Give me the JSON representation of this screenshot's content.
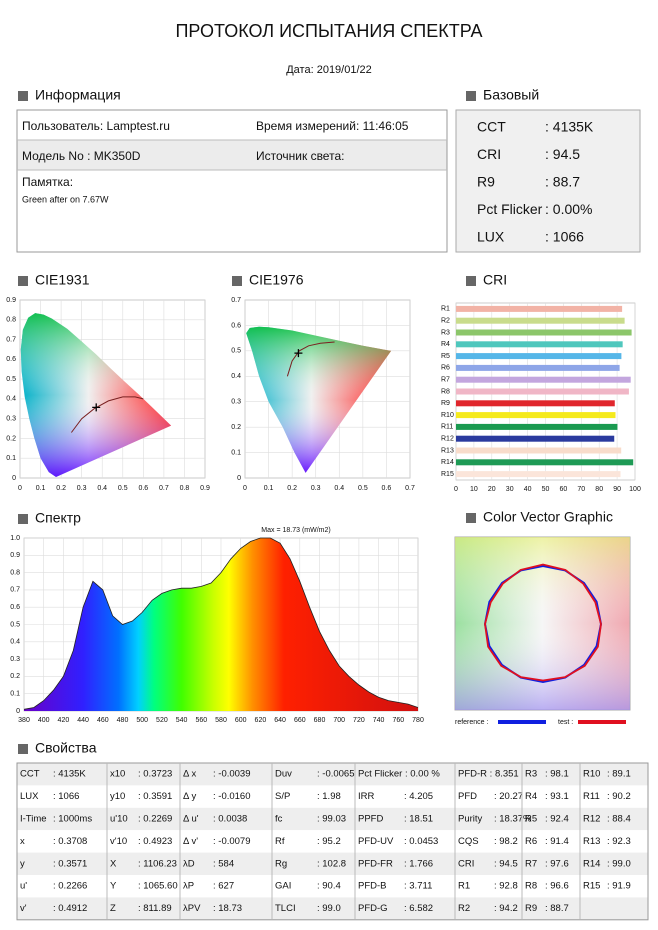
{
  "header": {
    "title": "ПРОТОКОЛ ИСПЫТАНИЯ СПЕКТРА",
    "date": "Дата: 2019/01/22"
  },
  "info": {
    "title": "Информация",
    "user": "Пользователь: Lamptest.ru",
    "time": "Время измерений: 11:46:05",
    "model": "Модель No : MK350D",
    "source": "Источник света:",
    "memo_label": "Памятка:",
    "memo": "Green after on 7.67W"
  },
  "basic": {
    "title": "Базовый",
    "rows": [
      [
        "CCT",
        ": 4135K"
      ],
      [
        "CRI",
        ": 94.5"
      ],
      [
        "R9",
        ": 88.7"
      ],
      [
        "Pct Flicker",
        ": 0.00%"
      ],
      [
        "LUX",
        ": 1066"
      ]
    ]
  },
  "cie1931": {
    "title": "CIE1931",
    "xlim": [
      0,
      0.9
    ],
    "ylim": [
      0,
      0.9
    ],
    "xticks": [
      0,
      0.1,
      0.2,
      0.3,
      0.4,
      0.5,
      0.6,
      0.7,
      0.8,
      0.9
    ],
    "yticks": [
      0,
      0.1,
      0.2,
      0.3,
      0.4,
      0.5,
      0.6,
      0.7,
      0.8,
      0.9
    ]
  },
  "cie1976": {
    "title": "CIE1976",
    "xlim": [
      0,
      0.7
    ],
    "ylim": [
      0,
      0.7
    ],
    "xticks": [
      0,
      0.1,
      0.2,
      0.3,
      0.4,
      0.5,
      0.6,
      0.7
    ],
    "yticks": [
      0,
      0.1,
      0.2,
      0.3,
      0.4,
      0.5,
      0.6,
      0.7
    ]
  },
  "cri": {
    "title": "CRI",
    "categories": [
      "R1",
      "R2",
      "R3",
      "R4",
      "R5",
      "R6",
      "R7",
      "R8",
      "R9",
      "R10",
      "R11",
      "R12",
      "R13",
      "R14",
      "R15"
    ],
    "values": [
      92.8,
      94.2,
      98.1,
      93.1,
      92.4,
      91.4,
      97.6,
      96.6,
      88.7,
      89.1,
      90.2,
      88.4,
      92.3,
      99.0,
      91.9
    ],
    "colors": [
      "#f2b3a6",
      "#c9dc8c",
      "#8cc66a",
      "#4fc7bd",
      "#55b6e8",
      "#8ea6e8",
      "#c3a6de",
      "#f0b6c6",
      "#e0262c",
      "#f5ea1c",
      "#1a9a50",
      "#2a3a9e",
      "#f8dccb",
      "#1e9a55",
      "#fbe5da"
    ],
    "xlim": [
      0,
      100
    ],
    "xticks": [
      0,
      10,
      20,
      30,
      40,
      50,
      60,
      70,
      80,
      90,
      100
    ]
  },
  "spectrum": {
    "title": "Спектр",
    "note": "Max = 18.73 (mW/m2)",
    "x": [
      380,
      390,
      400,
      410,
      420,
      430,
      440,
      450,
      460,
      470,
      480,
      490,
      500,
      510,
      520,
      530,
      540,
      550,
      560,
      570,
      580,
      590,
      600,
      610,
      620,
      630,
      640,
      650,
      660,
      670,
      680,
      690,
      700,
      710,
      720,
      730,
      740,
      750,
      760,
      770,
      780
    ],
    "values": [
      0.01,
      0.02,
      0.06,
      0.12,
      0.2,
      0.35,
      0.6,
      0.75,
      0.7,
      0.55,
      0.5,
      0.52,
      0.57,
      0.64,
      0.68,
      0.7,
      0.71,
      0.71,
      0.72,
      0.74,
      0.8,
      0.88,
      0.94,
      0.98,
      1.0,
      1.0,
      0.97,
      0.88,
      0.75,
      0.6,
      0.46,
      0.35,
      0.26,
      0.2,
      0.15,
      0.11,
      0.08,
      0.06,
      0.05,
      0.04,
      0.02
    ],
    "xlim": [
      380,
      780
    ],
    "ylim": [
      0,
      1
    ],
    "xticks": [
      380,
      400,
      420,
      440,
      460,
      480,
      500,
      520,
      540,
      560,
      580,
      600,
      620,
      640,
      660,
      680,
      700,
      720,
      740,
      760,
      780
    ],
    "yticks": [
      0,
      0.1,
      0.2,
      0.3,
      0.4,
      0.5,
      0.6,
      0.7,
      0.8,
      0.9,
      {
        "value": 1,
        "label": "1.0"
      }
    ]
  },
  "vector": {
    "title": "Color Vector Graphic",
    "reference": "reference :",
    "test": "test :"
  },
  "properties": {
    "title": "Свойства",
    "rows": [
      [
        [
          "CCT",
          ": 4135K"
        ],
        [
          "x10",
          ": 0.3723"
        ],
        [
          "Δ x",
          ": -0.0039"
        ],
        [
          "Duv",
          ": -0.0065"
        ],
        [
          "Pct Flicker : 0.00 %"
        ],
        [
          "PFD-R : 8.351"
        ],
        [
          "R3",
          ": 98.1"
        ],
        [
          "R10",
          ": 89.1"
        ]
      ],
      [
        [
          "LUX",
          ": 1066"
        ],
        [
          "y10",
          ": 0.3591"
        ],
        [
          "Δ y",
          ": -0.0160"
        ],
        [
          "S/P",
          ": 1.98"
        ],
        [
          "IRR",
          ": 4.205"
        ],
        [
          "PFD",
          ": 20.27"
        ],
        [
          "R4",
          ": 93.1"
        ],
        [
          "R11",
          ": 90.2"
        ]
      ],
      [
        [
          "I-Time",
          ": 1000ms"
        ],
        [
          "u'10",
          ": 0.2269"
        ],
        [
          "Δ u'",
          ": 0.0038"
        ],
        [
          "fc",
          ": 99.03"
        ],
        [
          "PPFD",
          ": 18.51"
        ],
        [
          "Purity",
          ": 18.37%"
        ],
        [
          "R5",
          ": 92.4"
        ],
        [
          "R12",
          ": 88.4"
        ]
      ],
      [
        [
          "x",
          ": 0.3708"
        ],
        [
          "v'10",
          ": 0.4923"
        ],
        [
          "Δ v'",
          ": -0.0079"
        ],
        [
          "Rf",
          ": 95.2"
        ],
        [
          "PFD-UV",
          ": 0.0453"
        ],
        [
          "CQS",
          ": 98.2"
        ],
        [
          "R6",
          ": 91.4"
        ],
        [
          "R13",
          ": 92.3"
        ]
      ],
      [
        [
          "y",
          ": 0.3571"
        ],
        [
          "X",
          ": 1106.23"
        ],
        [
          "λD",
          ": 584"
        ],
        [
          "Rg",
          ": 102.8"
        ],
        [
          "PFD-FR",
          ": 1.766"
        ],
        [
          "CRI",
          ": 94.5"
        ],
        [
          "R7",
          ": 97.6"
        ],
        [
          "R14",
          ": 99.0"
        ]
      ],
      [
        [
          "u'",
          ": 0.2266"
        ],
        [
          "Y",
          ": 1065.60"
        ],
        [
          "λP",
          ": 627"
        ],
        [
          "GAI",
          ": 90.4"
        ],
        [
          "PFD-B",
          ": 3.711"
        ],
        [
          "R1",
          ": 92.8"
        ],
        [
          "R8",
          ": 96.6"
        ],
        [
          "R15",
          ": 91.9"
        ]
      ],
      [
        [
          "v'",
          ": 0.4912"
        ],
        [
          "Z",
          ": 811.89"
        ],
        [
          "λPV",
          ": 18.73"
        ],
        [
          "TLCI",
          ": 99.0"
        ],
        [
          "PFD-G",
          ": 6.582"
        ],
        [
          "R2",
          ": 94.2"
        ],
        [
          "R9",
          ": 88.7"
        ]
      ]
    ]
  }
}
